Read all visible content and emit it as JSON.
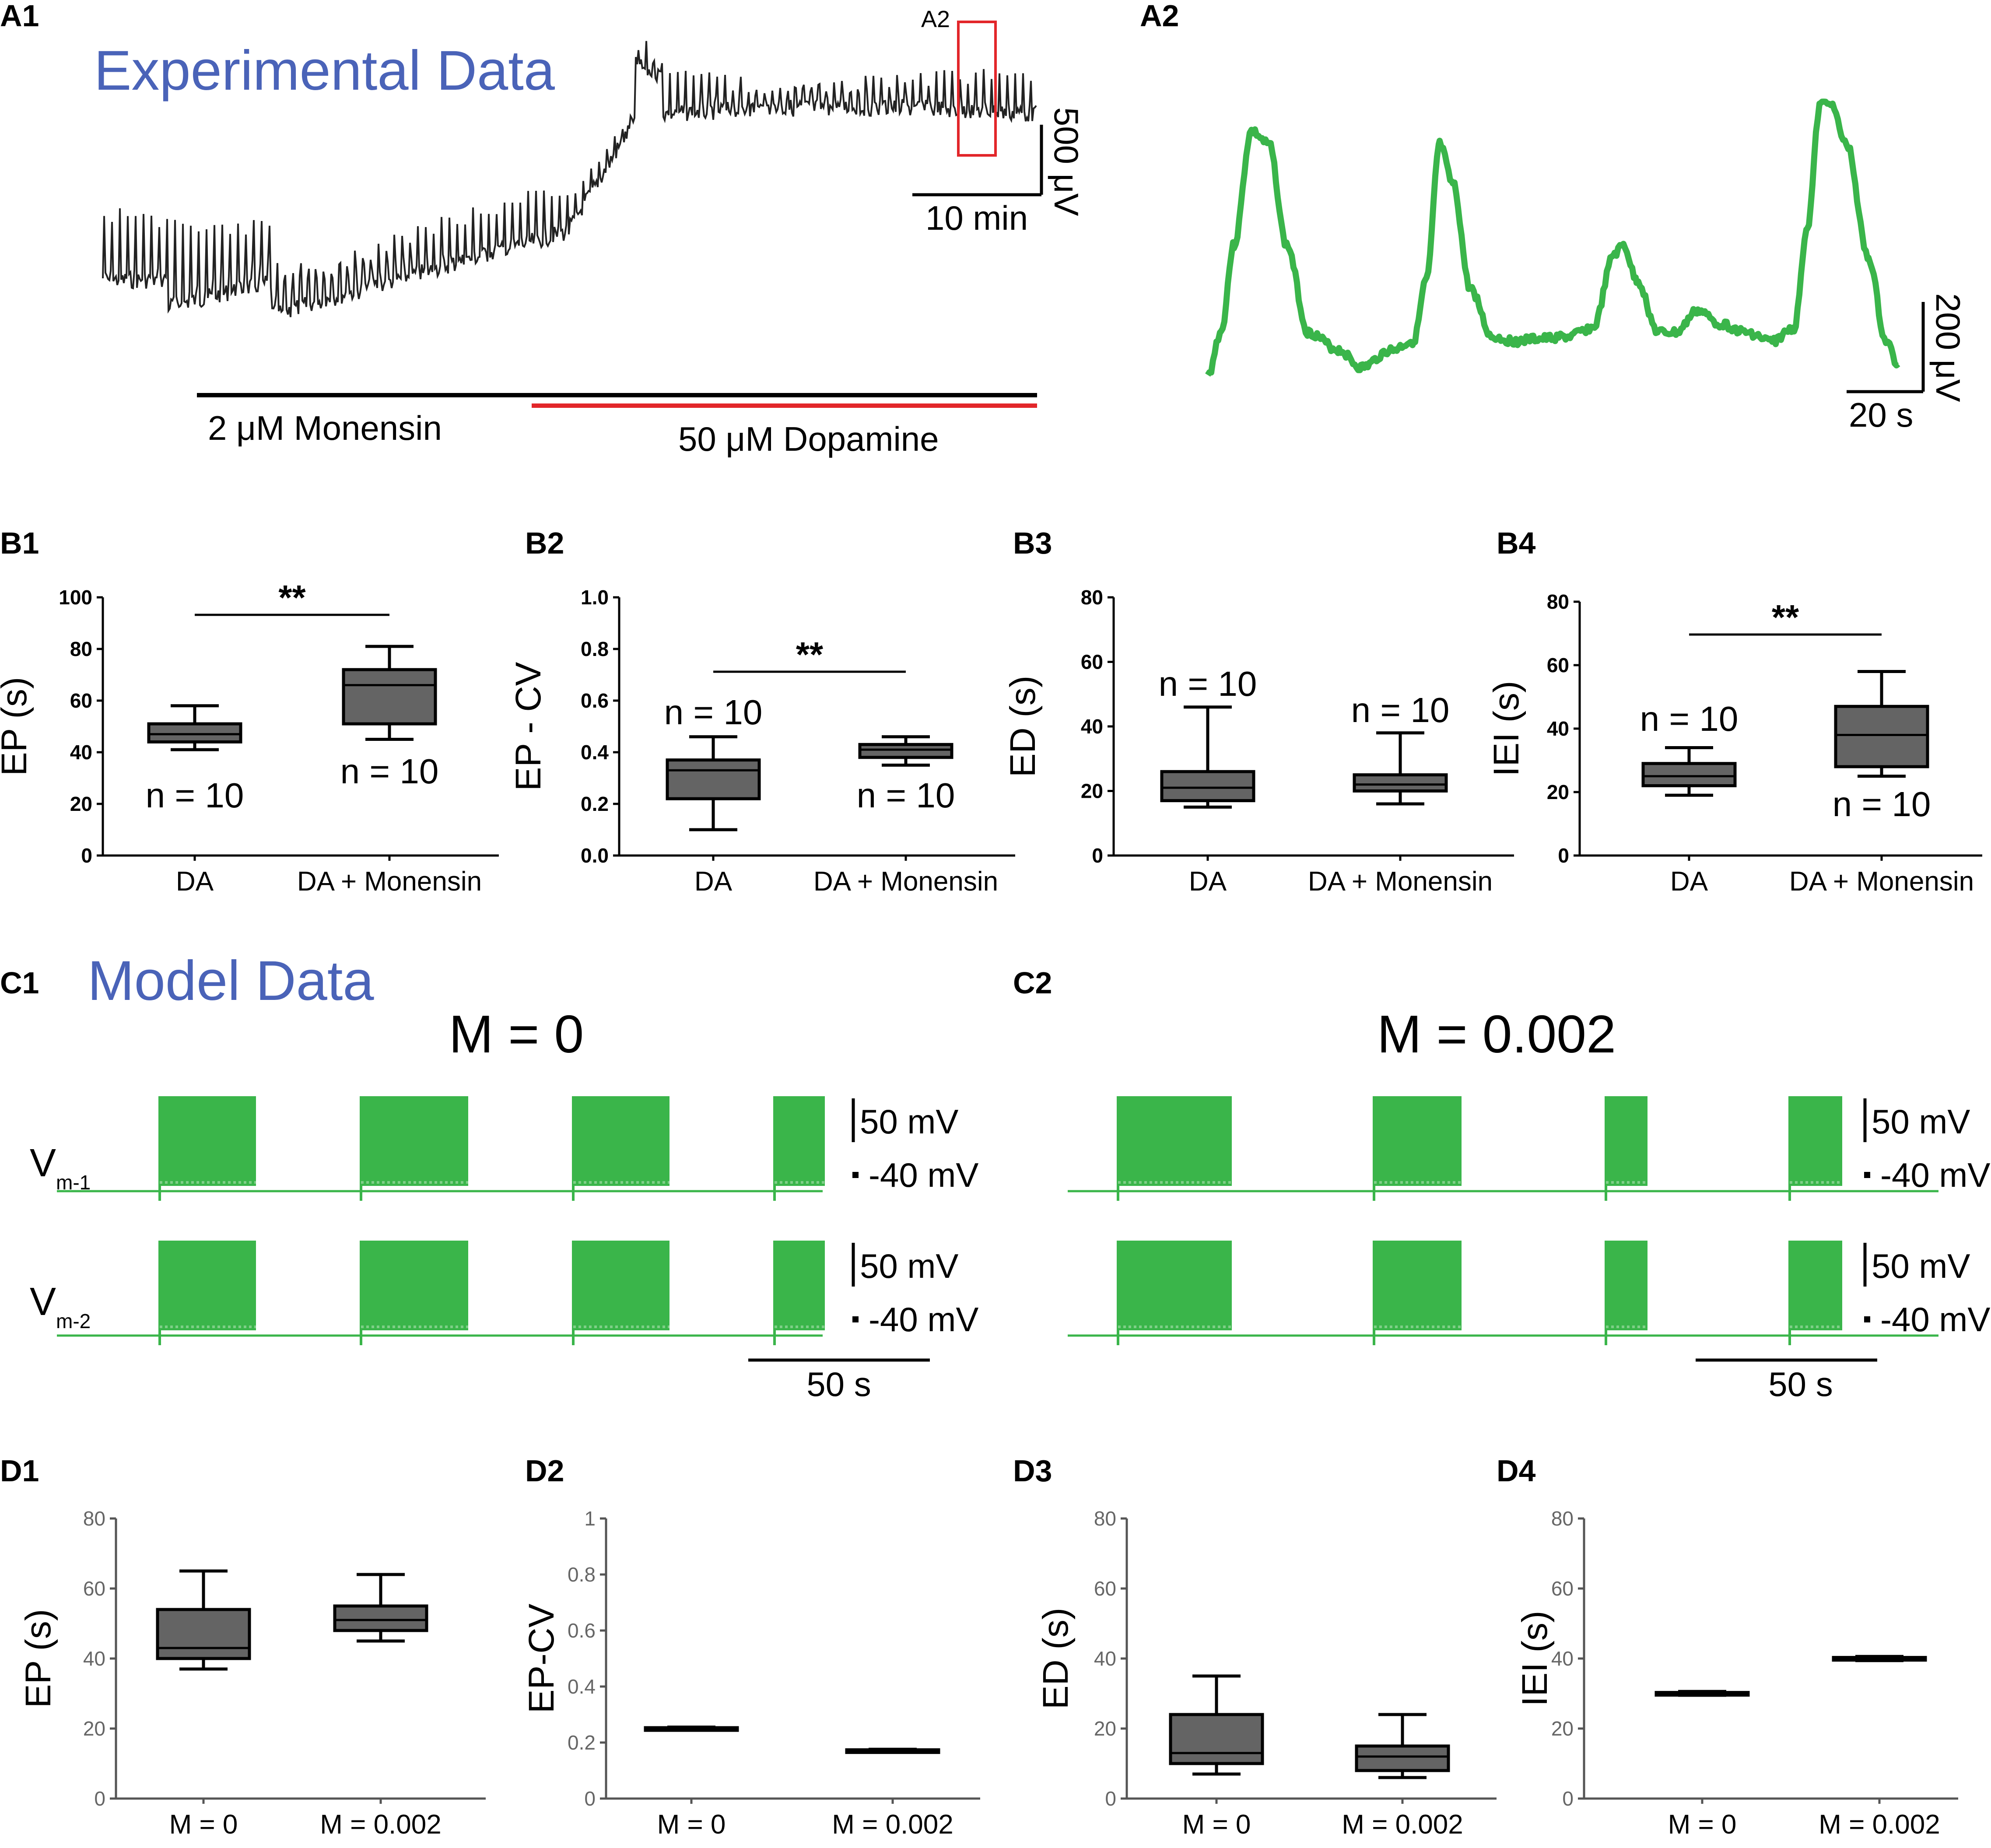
{
  "colors": {
    "blue_title": "#4a63b8",
    "green": "#3ab54a",
    "red": "#e2262a",
    "box_fill": "#646464",
    "trace_dark": "#222222"
  },
  "panel_labels": {
    "a1": "A1",
    "a2": "A2",
    "b1": "B1",
    "b2": "B2",
    "b3": "B3",
    "b4": "B4",
    "c1": "C1",
    "c2": "C2",
    "d1": "D1",
    "d2": "D2",
    "d3": "D3",
    "d4": "D4"
  },
  "a1": {
    "title": "Experimental Data",
    "inset_label": "A2",
    "scale_y": "500 μV",
    "scale_x": "10 min",
    "bar_monensin": "2 μM Monensin",
    "bar_dopamine": "50  μM Dopamine"
  },
  "a2": {
    "scale_y": "200 μV",
    "scale_x": "20 s"
  },
  "c": {
    "title": "Model Data",
    "c1_title": "M = 0",
    "c2_title": "M = 0.002",
    "trace1_label": "V",
    "trace1_sub": "m-1",
    "trace2_label": "V",
    "trace2_sub": "m-2",
    "scale_mv": "50 mV",
    "level_mv": "-40 mV",
    "scale_time": "50 s"
  },
  "chart_data": [
    {
      "id": "B1",
      "type": "box",
      "ylabel": "EP (s)",
      "ylim": [
        0,
        100
      ],
      "yticks": [
        "0",
        "20",
        "40",
        "60",
        "80",
        "100"
      ],
      "categories": [
        "DA",
        "DA + Monensin"
      ],
      "boxes": [
        {
          "min": 41,
          "q1": 44,
          "median": 47,
          "q3": 51,
          "max": 58
        },
        {
          "min": 45,
          "q1": 51,
          "median": 66,
          "q3": 72,
          "max": 81
        }
      ],
      "n_labels": [
        "n = 10",
        "n = 10"
      ],
      "significance": "**"
    },
    {
      "id": "B2",
      "type": "box",
      "ylabel": "EP - CV",
      "ylim": [
        0,
        1.0
      ],
      "yticks": [
        "0.0",
        "0.2",
        "0.4",
        "0.6",
        "0.8",
        "1.0"
      ],
      "categories": [
        "DA",
        "DA + Monensin"
      ],
      "boxes": [
        {
          "min": 0.1,
          "q1": 0.22,
          "median": 0.33,
          "q3": 0.37,
          "max": 0.46
        },
        {
          "min": 0.35,
          "q1": 0.38,
          "median": 0.41,
          "q3": 0.43,
          "max": 0.46
        }
      ],
      "n_labels": [
        "n = 10",
        "n = 10"
      ],
      "significance": "**"
    },
    {
      "id": "B3",
      "type": "box",
      "ylabel": "ED (s)",
      "ylim": [
        0,
        80
      ],
      "yticks": [
        "0",
        "20",
        "40",
        "60",
        "80"
      ],
      "categories": [
        "DA",
        "DA + Monensin"
      ],
      "boxes": [
        {
          "min": 15,
          "q1": 17,
          "median": 21,
          "q3": 26,
          "max": 46
        },
        {
          "min": 16,
          "q1": 20,
          "median": 22,
          "q3": 25,
          "max": 38
        }
      ],
      "n_labels": [
        "n = 10",
        "n = 10"
      ],
      "significance": ""
    },
    {
      "id": "B4",
      "type": "box",
      "ylabel": "IEI (s)",
      "ylim": [
        0,
        80
      ],
      "yticks": [
        "0",
        "20",
        "40",
        "60",
        "80"
      ],
      "categories": [
        "DA",
        "DA + Monensin"
      ],
      "boxes": [
        {
          "min": 19,
          "q1": 22,
          "median": 25,
          "q3": 29,
          "max": 34
        },
        {
          "min": 25,
          "q1": 28,
          "median": 38,
          "q3": 47,
          "max": 58
        }
      ],
      "n_labels": [
        "n = 10",
        "n = 10"
      ],
      "significance": "**"
    },
    {
      "id": "D1",
      "type": "box",
      "ylabel": "EP (s)",
      "ylim": [
        0,
        80
      ],
      "yticks": [
        "0",
        "20",
        "40",
        "60",
        "80"
      ],
      "categories": [
        "M = 0",
        "M = 0.002"
      ],
      "boxes": [
        {
          "min": 37,
          "q1": 40,
          "median": 43,
          "q3": 54,
          "max": 65
        },
        {
          "min": 45,
          "q1": 48,
          "median": 51,
          "q3": 55,
          "max": 64
        }
      ],
      "n_labels": [],
      "significance": ""
    },
    {
      "id": "D2",
      "type": "box",
      "ylabel": "EP-CV",
      "ylim": [
        0,
        1
      ],
      "yticks": [
        "0",
        "0.2",
        "0.4",
        "0.6",
        "0.8",
        "1"
      ],
      "categories": [
        "M = 0",
        "M = 0.002"
      ],
      "boxes": [
        {
          "min": 0.245,
          "q1": 0.247,
          "median": 0.25,
          "q3": 0.253,
          "max": 0.255
        },
        {
          "min": 0.168,
          "q1": 0.17,
          "median": 0.172,
          "q3": 0.174,
          "max": 0.176
        }
      ],
      "n_labels": [],
      "significance": ""
    },
    {
      "id": "D3",
      "type": "box",
      "ylabel": "ED (s)",
      "ylim": [
        0,
        80
      ],
      "yticks": [
        "0",
        "20",
        "40",
        "60",
        "80"
      ],
      "categories": [
        "M = 0",
        "M = 0.002"
      ],
      "boxes": [
        {
          "min": 7,
          "q1": 10,
          "median": 13,
          "q3": 24,
          "max": 35
        },
        {
          "min": 6,
          "q1": 8,
          "median": 12,
          "q3": 15,
          "max": 24
        }
      ],
      "n_labels": [],
      "significance": ""
    },
    {
      "id": "D4",
      "type": "box",
      "ylabel": "IEI (s)",
      "ylim": [
        0,
        80
      ],
      "yticks": [
        "0",
        "20",
        "40",
        "60",
        "80"
      ],
      "categories": [
        "M = 0",
        "M = 0.002"
      ],
      "boxes": [
        {
          "min": 29.5,
          "q1": 29.8,
          "median": 30,
          "q3": 30.3,
          "max": 30.6
        },
        {
          "min": 39.4,
          "q1": 39.7,
          "median": 40,
          "q3": 40.3,
          "max": 40.6
        }
      ],
      "n_labels": [],
      "significance": ""
    }
  ]
}
